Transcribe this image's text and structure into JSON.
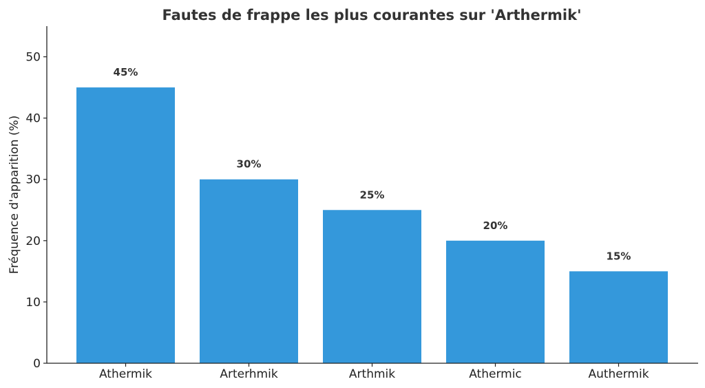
{
  "chart_data": {
    "type": "bar",
    "title": "Fautes de frappe les plus courantes sur 'Arthermik'",
    "xlabel": "",
    "ylabel": "Fréquence d'apparition (%)",
    "categories": [
      "Athermik",
      "Arterhmik",
      "Arthmik",
      "Athermic",
      "Authermik"
    ],
    "values": [
      45,
      30,
      25,
      20,
      15
    ],
    "data_labels": [
      "45%",
      "30%",
      "25%",
      "20%",
      "15%"
    ],
    "ylim": [
      0,
      55
    ],
    "yticks": [
      0,
      10,
      20,
      30,
      40,
      50
    ],
    "ytick_labels": [
      "0",
      "10",
      "20",
      "30",
      "40",
      "50"
    ],
    "bar_color": "#3498db",
    "grid": false,
    "legend": "none"
  }
}
